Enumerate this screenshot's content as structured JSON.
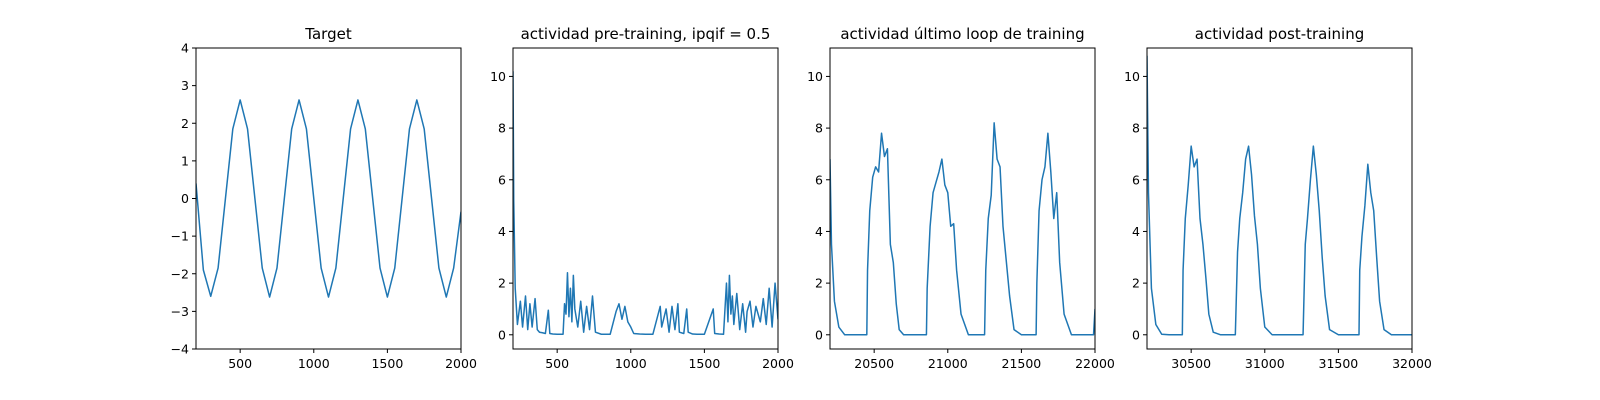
{
  "chart_data": [
    {
      "type": "line",
      "title": "Target",
      "xlim": [
        200,
        2000
      ],
      "ylim": [
        -4,
        4
      ],
      "xticks": [
        500,
        1000,
        1500,
        2000
      ],
      "yticks": [
        -4,
        -3,
        -2,
        -1,
        0,
        1,
        2,
        3,
        4
      ],
      "x": [
        200,
        250,
        300,
        350,
        400,
        450,
        500,
        550,
        600,
        650,
        700,
        750,
        800,
        850,
        900,
        950,
        1000,
        1050,
        1100,
        1150,
        1200,
        1250,
        1300,
        1350,
        1400,
        1450,
        1500,
        1550,
        1600,
        1650,
        1700,
        1750,
        1800,
        1850,
        1900,
        1950,
        2000
      ],
      "series": [
        {
          "values": [
            0.4,
            -1.9,
            -2.6,
            -1.85,
            0.0,
            1.85,
            2.62,
            1.85,
            0.0,
            -1.85,
            -2.62,
            -1.85,
            0.0,
            1.85,
            2.62,
            1.85,
            0.0,
            -1.85,
            -2.62,
            -1.85,
            0.0,
            1.85,
            2.62,
            1.85,
            0.0,
            -1.85,
            -2.62,
            -1.85,
            0.0,
            1.85,
            2.62,
            1.85,
            0.0,
            -1.85,
            -2.62,
            -1.85,
            -0.35
          ]
        }
      ],
      "color": "#1f77b4"
    },
    {
      "type": "line",
      "title": "actividad pre-training, ipqif = 0.5",
      "xlim": [
        200,
        2000
      ],
      "ylim": [
        -0.55,
        11.1
      ],
      "xticks": [
        500,
        1000,
        1500,
        2000
      ],
      "yticks": [
        0,
        2,
        4,
        6,
        8,
        10
      ],
      "x": [
        200,
        205,
        215,
        230,
        250,
        265,
        285,
        300,
        315,
        330,
        350,
        365,
        380,
        400,
        420,
        440,
        450,
        470,
        500,
        520,
        540,
        550,
        560,
        570,
        580,
        590,
        600,
        610,
        620,
        640,
        660,
        680,
        700,
        720,
        740,
        760,
        800,
        860,
        900,
        920,
        940,
        960,
        980,
        1000,
        1020,
        1060,
        1100,
        1150,
        1200,
        1210,
        1240,
        1260,
        1280,
        1300,
        1320,
        1330,
        1360,
        1380,
        1390,
        1420,
        1450,
        1500,
        1560,
        1570,
        1600,
        1630,
        1650,
        1660,
        1670,
        1680,
        1690,
        1700,
        1720,
        1740,
        1760,
        1780,
        1790,
        1810,
        1830,
        1850,
        1880,
        1900,
        1920,
        1940,
        1960,
        1980,
        2000
      ],
      "series": [
        {
          "values": [
            10.2,
            5.2,
            1.8,
            0.4,
            1.3,
            0.3,
            1.5,
            0.2,
            1.2,
            0.3,
            1.4,
            0.2,
            0.1,
            0.08,
            0.05,
            0.95,
            0.05,
            0.03,
            0.02,
            0.02,
            0.02,
            1.2,
            0.8,
            2.4,
            0.7,
            1.8,
            0.5,
            2.3,
            1.0,
            0.3,
            1.3,
            0.1,
            1.1,
            0.2,
            1.5,
            0.1,
            0.02,
            0.02,
            0.9,
            1.2,
            0.6,
            1.1,
            0.5,
            0.3,
            0.05,
            0.03,
            0.02,
            0.02,
            1.1,
            0.3,
            1.0,
            0.1,
            1.1,
            0.2,
            1.2,
            0.1,
            0.05,
            1.0,
            0.1,
            0.03,
            0.02,
            0.02,
            1.0,
            0.05,
            0.03,
            0.02,
            2.0,
            0.5,
            2.3,
            0.8,
            1.5,
            0.4,
            1.6,
            0.2,
            1.2,
            0.1,
            0.9,
            1.3,
            0.3,
            1.1,
            0.5,
            1.4,
            0.4,
            1.8,
            0.3,
            2.0,
            0.6
          ]
        }
      ],
      "color": "#1f77b4"
    },
    {
      "type": "line",
      "title": "actividad último loop de training",
      "xlim": [
        20200,
        22000
      ],
      "ylim": [
        -0.55,
        11.1
      ],
      "xticks": [
        20500,
        21000,
        21500,
        22000
      ],
      "yticks": [
        0,
        2,
        4,
        6,
        8,
        10
      ],
      "x": [
        20200,
        20210,
        20230,
        20260,
        20300,
        20350,
        20400,
        20450,
        20455,
        20470,
        20490,
        20510,
        20530,
        20550,
        20570,
        20590,
        20610,
        20630,
        20650,
        20670,
        20700,
        20750,
        20800,
        20855,
        20860,
        20880,
        20900,
        20920,
        20940,
        20960,
        20980,
        21000,
        21020,
        21040,
        21060,
        21090,
        21140,
        21200,
        21250,
        21258,
        21275,
        21295,
        21315,
        21335,
        21355,
        21375,
        21395,
        21420,
        21450,
        21500,
        21550,
        21600,
        21605,
        21620,
        21640,
        21660,
        21680,
        21700,
        21720,
        21740,
        21760,
        21790,
        21840,
        21900,
        21990,
        22000
      ],
      "series": [
        {
          "values": [
            6.8,
            3.5,
            1.3,
            0.3,
            0.0,
            0.0,
            0.0,
            0.0,
            2.5,
            4.8,
            6.1,
            6.5,
            6.3,
            7.8,
            6.9,
            7.2,
            3.5,
            2.8,
            1.2,
            0.2,
            0.0,
            0.0,
            0.0,
            0.0,
            1.8,
            4.2,
            5.5,
            5.9,
            6.3,
            6.8,
            5.8,
            5.5,
            4.2,
            4.3,
            2.5,
            0.8,
            0.0,
            0.0,
            0.0,
            2.5,
            4.5,
            5.4,
            8.2,
            6.8,
            6.5,
            4.2,
            3.0,
            1.5,
            0.2,
            0.0,
            0.0,
            0.0,
            2.0,
            4.8,
            6.0,
            6.5,
            7.8,
            6.3,
            4.5,
            5.5,
            2.8,
            0.8,
            0.0,
            0.0,
            0.0,
            1.0
          ]
        }
      ],
      "color": "#1f77b4"
    },
    {
      "type": "line",
      "title": "actividad post-training",
      "xlim": [
        30200,
        32000
      ],
      "ylim": [
        -0.55,
        11.1
      ],
      "xticks": [
        30500,
        31000,
        31500,
        32000
      ],
      "yticks": [
        0,
        2,
        4,
        6,
        8,
        10
      ],
      "x": [
        30200,
        30210,
        30230,
        30260,
        30300,
        30350,
        30400,
        30440,
        30445,
        30460,
        30480,
        30500,
        30520,
        30540,
        30560,
        30580,
        30600,
        30620,
        30650,
        30700,
        30750,
        30800,
        30815,
        30830,
        30850,
        30870,
        30890,
        30910,
        30930,
        30950,
        30970,
        31000,
        31050,
        31100,
        31150,
        31200,
        31260,
        31275,
        31290,
        31310,
        31330,
        31350,
        31370,
        31390,
        31410,
        31440,
        31500,
        31550,
        31600,
        31640,
        31645,
        31660,
        31680,
        31700,
        31720,
        31740,
        31760,
        31780,
        31810,
        31860,
        31920,
        32000
      ],
      "series": [
        {
          "values": [
            10.8,
            5.5,
            1.8,
            0.4,
            0.02,
            0.0,
            0.0,
            0.0,
            2.5,
            4.5,
            5.8,
            7.3,
            6.5,
            6.8,
            4.5,
            3.5,
            2.2,
            0.8,
            0.1,
            0.0,
            0.0,
            0.0,
            3.2,
            4.5,
            5.5,
            6.8,
            7.3,
            6.2,
            4.6,
            3.5,
            1.8,
            0.3,
            0.0,
            0.0,
            0.0,
            0.0,
            0.0,
            3.5,
            4.5,
            6.0,
            7.3,
            6.2,
            4.8,
            3.0,
            1.5,
            0.2,
            0.0,
            0.0,
            0.0,
            0.0,
            2.5,
            3.8,
            5.0,
            6.6,
            5.5,
            4.8,
            3.0,
            1.3,
            0.2,
            0.0,
            0.0,
            0.0
          ]
        }
      ],
      "color": "#1f77b4"
    }
  ]
}
